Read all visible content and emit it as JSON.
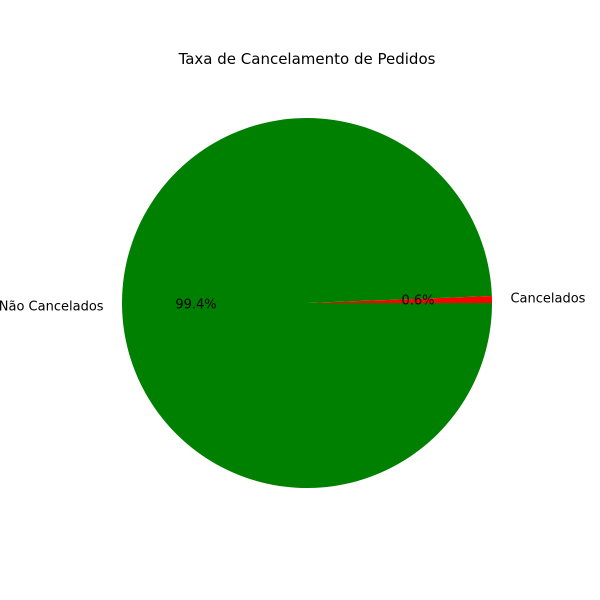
{
  "chart_data": {
    "type": "pie",
    "title": "Taxa de Cancelamento de Pedidos",
    "slices": [
      {
        "label": "Cancelados",
        "value": 0.6,
        "pct_label": "0.6%",
        "color": "#ff0000"
      },
      {
        "label": "Não Cancelados",
        "value": 99.4,
        "pct_label": "99.4%",
        "color": "#008000"
      }
    ],
    "start_angle_deg": 0,
    "direction": "counterclockwise",
    "legend": "none"
  }
}
